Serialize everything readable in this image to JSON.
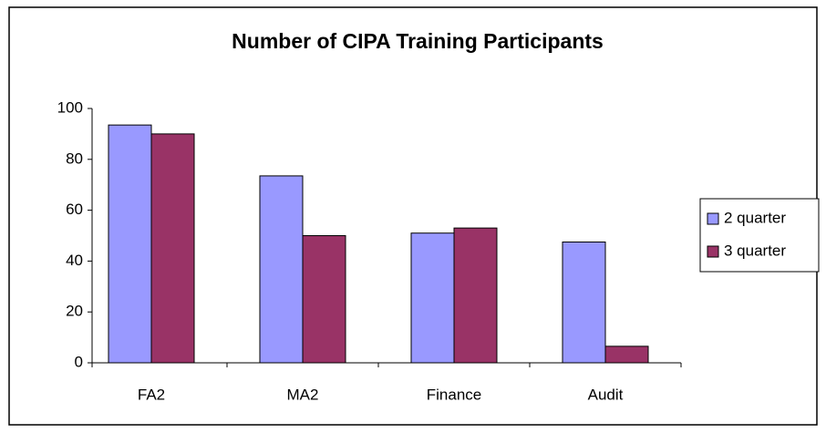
{
  "chart_data": {
    "type": "bar",
    "title": "Number of CIPA Training Participants",
    "categories": [
      "FA2",
      "MA2",
      "Finance",
      "Audit"
    ],
    "series": [
      {
        "name": "2 quarter",
        "color": "#9999ff",
        "values": [
          93.5,
          73.5,
          51,
          47.5
        ]
      },
      {
        "name": "3 quarter",
        "color": "#993366",
        "values": [
          90,
          50,
          53,
          6.5
        ]
      }
    ],
    "ylim": [
      0,
      100
    ],
    "yticks": [
      0,
      20,
      40,
      60,
      80,
      100
    ],
    "grid": false,
    "legend": "right"
  }
}
